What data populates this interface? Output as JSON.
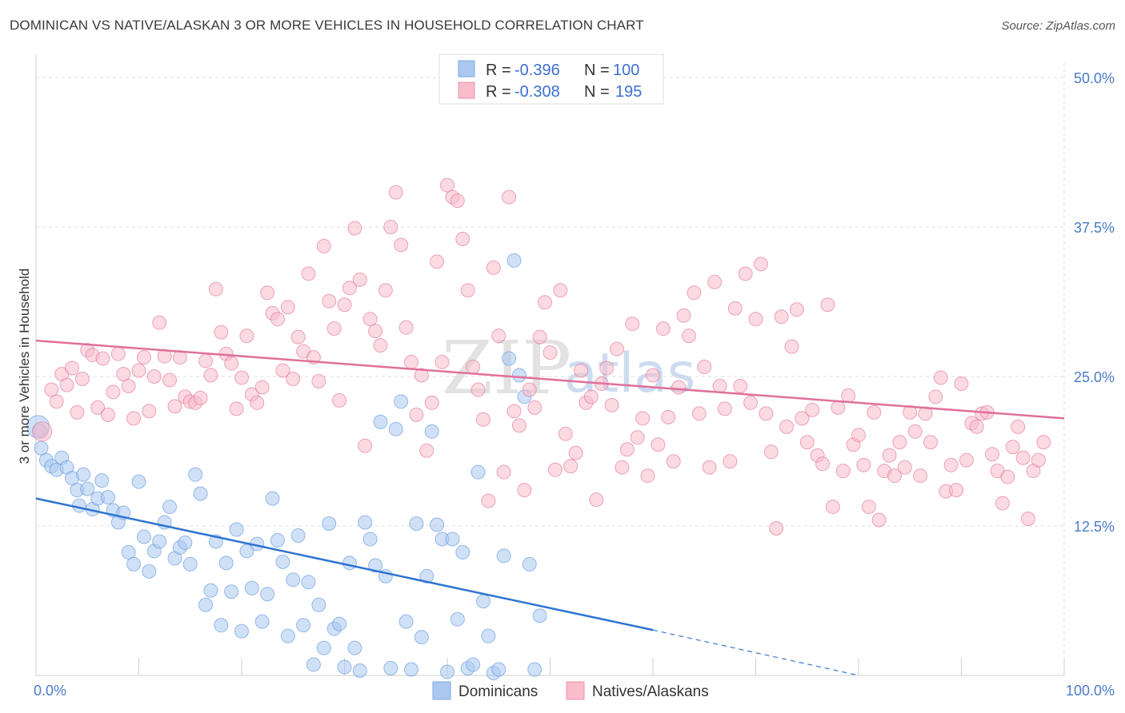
{
  "title": "DOMINICAN VS NATIVE/ALASKAN 3 OR MORE VEHICLES IN HOUSEHOLD CORRELATION CHART",
  "source": "Source: ZipAtlas.com",
  "watermark": {
    "zip": "ZIP",
    "atlas": "atlas"
  },
  "legend": {
    "r_label": "R =",
    "n_label": "N =",
    "rows": [
      {
        "r": "-0.396",
        "n": "100",
        "color": "#aac8f0"
      },
      {
        "r": "-0.308",
        "n": "195",
        "color": "#f8bccb"
      }
    ]
  },
  "bottom_legend": [
    {
      "label": "Dominicans",
      "color": "#aac8f0"
    },
    {
      "label": "Natives/Alaskans",
      "color": "#f8bccb"
    }
  ],
  "chart_data": {
    "type": "scatter",
    "title": "DOMINICAN VS NATIVE/ALASKAN 3 OR MORE VEHICLES IN HOUSEHOLD CORRELATION CHART",
    "xlabel": "",
    "ylabel": "3 or more Vehicles in Household",
    "xlim": [
      0,
      100
    ],
    "ylim": [
      0,
      50
    ],
    "x_tick_labels": [
      "0.0%",
      "100.0%"
    ],
    "y_ticks": [
      12.5,
      25.0,
      37.5,
      50.0
    ],
    "y_tick_labels": [
      "12.5%",
      "25.0%",
      "37.5%",
      "50.0%"
    ],
    "grid": true,
    "legend_position": "top-center",
    "series": [
      {
        "name": "Dominicans",
        "color": "#5b93dc",
        "fill": "#aac8f0",
        "trend": {
          "x0": 0,
          "y0": 14.8,
          "x1": 60,
          "y1": 3.8,
          "dashed_to_x": 80,
          "dashed_to_y": 0
        },
        "points": [
          [
            0.3,
            20.5
          ],
          [
            0.5,
            19
          ],
          [
            1,
            18
          ],
          [
            1.5,
            17.5
          ],
          [
            2,
            17.2
          ],
          [
            2.5,
            18.2
          ],
          [
            3,
            17.4
          ],
          [
            3.5,
            16.5
          ],
          [
            4,
            15.5
          ],
          [
            4.2,
            14.2
          ],
          [
            4.6,
            16.8
          ],
          [
            5,
            15.6
          ],
          [
            5.5,
            13.9
          ],
          [
            6,
            14.8
          ],
          [
            6.4,
            16.3
          ],
          [
            7,
            14.9
          ],
          [
            7.5,
            13.8
          ],
          [
            8,
            12.8
          ],
          [
            8.5,
            13.6
          ],
          [
            9,
            10.3
          ],
          [
            9.5,
            9.3
          ],
          [
            10,
            16.2
          ],
          [
            10.5,
            11.6
          ],
          [
            11,
            8.7
          ],
          [
            11.5,
            10.4
          ],
          [
            12,
            11.2
          ],
          [
            12.5,
            12.8
          ],
          [
            13,
            14.1
          ],
          [
            13.5,
            9.8
          ],
          [
            14,
            10.7
          ],
          [
            14.5,
            11.1
          ],
          [
            15,
            9.3
          ],
          [
            15.5,
            16.8
          ],
          [
            16,
            15.2
          ],
          [
            16.5,
            5.9
          ],
          [
            17,
            7.1
          ],
          [
            17.5,
            11.2
          ],
          [
            18,
            4.2
          ],
          [
            18.5,
            9.4
          ],
          [
            19,
            7.0
          ],
          [
            19.5,
            12.2
          ],
          [
            20,
            3.7
          ],
          [
            20.5,
            10.4
          ],
          [
            21,
            7.3
          ],
          [
            21.5,
            11.0
          ],
          [
            22,
            4.5
          ],
          [
            22.5,
            6.8
          ],
          [
            23,
            14.8
          ],
          [
            23.5,
            11.3
          ],
          [
            24,
            9.5
          ],
          [
            24.5,
            3.3
          ],
          [
            25,
            8.0
          ],
          [
            25.5,
            11.7
          ],
          [
            26,
            4.2
          ],
          [
            26.5,
            7.8
          ],
          [
            27,
            0.9
          ],
          [
            27.5,
            5.9
          ],
          [
            28,
            2.3
          ],
          [
            28.5,
            12.7
          ],
          [
            29,
            3.9
          ],
          [
            29.5,
            4.3
          ],
          [
            30,
            0.7
          ],
          [
            30.5,
            9.4
          ],
          [
            31,
            2.3
          ],
          [
            31.5,
            0.4
          ],
          [
            32,
            12.8
          ],
          [
            32.5,
            11.4
          ],
          [
            33,
            9.2
          ],
          [
            33.5,
            21.2
          ],
          [
            34,
            8.3
          ],
          [
            34.5,
            0.6
          ],
          [
            35,
            20.6
          ],
          [
            35.5,
            22.9
          ],
          [
            36,
            4.5
          ],
          [
            36.5,
            0.5
          ],
          [
            37,
            12.7
          ],
          [
            37.5,
            3.2
          ],
          [
            38,
            8.3
          ],
          [
            38.5,
            20.4
          ],
          [
            39,
            12.6
          ],
          [
            39.5,
            11.4
          ],
          [
            40,
            0.3
          ],
          [
            40.5,
            11.4
          ],
          [
            41,
            4.7
          ],
          [
            41.5,
            10.3
          ],
          [
            42,
            0.6
          ],
          [
            42.5,
            0.9
          ],
          [
            43,
            17.0
          ],
          [
            43.5,
            6.2
          ],
          [
            44,
            3.3
          ],
          [
            44.5,
            0.2
          ],
          [
            45,
            0.5
          ],
          [
            45.5,
            10.0
          ],
          [
            46,
            26.5
          ],
          [
            46.5,
            34.7
          ],
          [
            47,
            25.1
          ],
          [
            47.5,
            23.3
          ],
          [
            48,
            9.3
          ],
          [
            48.5,
            0.5
          ],
          [
            49,
            5.0
          ]
        ]
      },
      {
        "name": "Natives/Alaskans",
        "color": "#e0709a",
        "fill": "#f8bccb",
        "trend": {
          "x0": 0,
          "y0": 28.0,
          "x1": 100,
          "y1": 21.5
        },
        "points": [
          [
            0.5,
            20.4
          ],
          [
            1.5,
            23.9
          ],
          [
            2,
            22.9
          ],
          [
            2.5,
            25.2
          ],
          [
            3,
            24.3
          ],
          [
            3.5,
            25.7
          ],
          [
            4,
            22.0
          ],
          [
            4.5,
            24.8
          ],
          [
            5,
            27.2
          ],
          [
            5.5,
            26.8
          ],
          [
            6,
            22.4
          ],
          [
            6.5,
            26.5
          ],
          [
            7,
            21.8
          ],
          [
            7.5,
            23.7
          ],
          [
            8,
            26.9
          ],
          [
            8.5,
            25.2
          ],
          [
            9,
            24.2
          ],
          [
            9.5,
            21.5
          ],
          [
            10,
            25.5
          ],
          [
            10.5,
            26.6
          ],
          [
            11,
            22.1
          ],
          [
            11.5,
            25.0
          ],
          [
            12,
            29.5
          ],
          [
            12.5,
            26.7
          ],
          [
            13,
            24.7
          ],
          [
            13.5,
            22.5
          ],
          [
            14,
            26.6
          ],
          [
            14.5,
            23.3
          ],
          [
            15,
            22.9
          ],
          [
            15.5,
            22.8
          ],
          [
            16,
            23.2
          ],
          [
            16.5,
            26.3
          ],
          [
            17,
            25.1
          ],
          [
            17.5,
            32.3
          ],
          [
            18,
            28.7
          ],
          [
            18.5,
            26.9
          ],
          [
            19,
            26.1
          ],
          [
            19.5,
            22.3
          ],
          [
            20,
            24.9
          ],
          [
            20.5,
            28.4
          ],
          [
            21,
            23.5
          ],
          [
            21.5,
            22.8
          ],
          [
            22,
            24.1
          ],
          [
            22.5,
            32.0
          ],
          [
            23,
            30.3
          ],
          [
            23.5,
            29.8
          ],
          [
            24,
            25.5
          ],
          [
            24.5,
            30.8
          ],
          [
            25,
            24.8
          ],
          [
            25.5,
            28.3
          ],
          [
            26,
            27.1
          ],
          [
            26.5,
            33.6
          ],
          [
            27,
            26.6
          ],
          [
            27.5,
            24.6
          ],
          [
            28,
            35.9
          ],
          [
            28.5,
            31.3
          ],
          [
            29,
            29.0
          ],
          [
            29.5,
            23.0
          ],
          [
            30,
            31.0
          ],
          [
            30.5,
            32.4
          ],
          [
            31,
            37.4
          ],
          [
            31.5,
            33.1
          ],
          [
            32,
            19.2
          ],
          [
            32.5,
            29.8
          ],
          [
            33,
            28.8
          ],
          [
            33.5,
            27.6
          ],
          [
            34,
            32.2
          ],
          [
            34.5,
            37.5
          ],
          [
            35,
            40.4
          ],
          [
            35.5,
            36.0
          ],
          [
            36,
            29.1
          ],
          [
            36.5,
            26.2
          ],
          [
            37,
            21.8
          ],
          [
            37.5,
            25.1
          ],
          [
            38,
            18.8
          ],
          [
            38.5,
            22.8
          ],
          [
            39,
            34.6
          ],
          [
            39.5,
            26.2
          ],
          [
            40,
            41.0
          ],
          [
            40.5,
            40.0
          ],
          [
            41,
            39.7
          ],
          [
            41.5,
            36.5
          ],
          [
            42,
            32.2
          ],
          [
            42.5,
            25.8
          ],
          [
            43,
            23.9
          ],
          [
            43.5,
            21.4
          ],
          [
            44,
            14.6
          ],
          [
            44.5,
            34.1
          ],
          [
            45,
            28.4
          ],
          [
            45.5,
            17.0
          ],
          [
            46,
            40.0
          ],
          [
            46.5,
            22.1
          ],
          [
            47,
            20.9
          ],
          [
            47.5,
            15.5
          ],
          [
            48,
            23.9
          ],
          [
            48.5,
            22.4
          ],
          [
            49,
            28.3
          ],
          [
            49.5,
            31.2
          ],
          [
            50,
            27.0
          ],
          [
            50.5,
            17.2
          ],
          [
            51,
            32.2
          ],
          [
            51.5,
            20.2
          ],
          [
            52,
            17.5
          ],
          [
            52.5,
            18.6
          ],
          [
            53,
            25.5
          ],
          [
            53.5,
            22.8
          ],
          [
            54,
            23.3
          ],
          [
            54.5,
            14.7
          ],
          [
            55,
            24.4
          ],
          [
            55.5,
            25.7
          ],
          [
            56,
            22.6
          ],
          [
            56.5,
            27.3
          ],
          [
            57,
            17.4
          ],
          [
            57.5,
            18.9
          ],
          [
            58,
            29.4
          ],
          [
            58.5,
            19.9
          ],
          [
            59,
            21.5
          ],
          [
            59.5,
            16.7
          ],
          [
            60,
            25.1
          ],
          [
            60.5,
            19.3
          ],
          [
            61,
            29.0
          ],
          [
            61.5,
            21.6
          ],
          [
            62,
            17.9
          ],
          [
            62.5,
            24.1
          ],
          [
            63,
            30.1
          ],
          [
            63.5,
            28.4
          ],
          [
            64,
            32.0
          ],
          [
            64.5,
            21.9
          ],
          [
            65,
            25.8
          ],
          [
            65.5,
            17.4
          ],
          [
            66,
            32.9
          ],
          [
            66.5,
            24.2
          ],
          [
            67,
            22.3
          ],
          [
            67.5,
            17.9
          ],
          [
            68,
            30.7
          ],
          [
            68.5,
            24.2
          ],
          [
            69,
            33.6
          ],
          [
            69.5,
            22.8
          ],
          [
            70,
            29.8
          ],
          [
            70.5,
            34.4
          ],
          [
            71,
            21.9
          ],
          [
            71.5,
            18.7
          ],
          [
            72,
            12.3
          ],
          [
            72.5,
            30.0
          ],
          [
            73,
            20.8
          ],
          [
            73.5,
            27.5
          ],
          [
            74,
            30.6
          ],
          [
            74.5,
            21.5
          ],
          [
            75,
            19.5
          ],
          [
            75.5,
            22.2
          ],
          [
            76,
            18.4
          ],
          [
            76.5,
            17.7
          ],
          [
            77,
            31.0
          ],
          [
            77.5,
            14.1
          ],
          [
            78,
            22.4
          ],
          [
            78.5,
            17.1
          ],
          [
            79,
            23.4
          ],
          [
            79.5,
            19.3
          ],
          [
            80,
            20.1
          ],
          [
            80.5,
            17.6
          ],
          [
            81,
            14.1
          ],
          [
            81.5,
            22.0
          ],
          [
            82,
            13.0
          ],
          [
            82.5,
            17.1
          ],
          [
            83,
            18.4
          ],
          [
            83.5,
            16.7
          ],
          [
            84,
            19.5
          ],
          [
            84.5,
            17.4
          ],
          [
            85,
            22.0
          ],
          [
            85.5,
            20.4
          ],
          [
            86,
            16.7
          ],
          [
            86.5,
            21.9
          ],
          [
            87,
            19.5
          ],
          [
            87.5,
            23.3
          ],
          [
            88,
            24.9
          ],
          [
            88.5,
            15.4
          ],
          [
            89,
            17.6
          ],
          [
            89.5,
            15.5
          ],
          [
            90,
            24.4
          ],
          [
            90.5,
            18.0
          ],
          [
            91,
            21.1
          ],
          [
            91.5,
            20.8
          ],
          [
            92,
            21.9
          ],
          [
            92.5,
            22.0
          ],
          [
            93,
            18.5
          ],
          [
            93.5,
            17.1
          ],
          [
            94,
            14.4
          ],
          [
            94.5,
            16.6
          ],
          [
            95,
            19.1
          ],
          [
            95.5,
            20.8
          ],
          [
            96,
            18.2
          ],
          [
            96.5,
            13.1
          ],
          [
            97,
            17.1
          ],
          [
            97.5,
            18.0
          ],
          [
            98,
            19.5
          ]
        ]
      }
    ]
  }
}
